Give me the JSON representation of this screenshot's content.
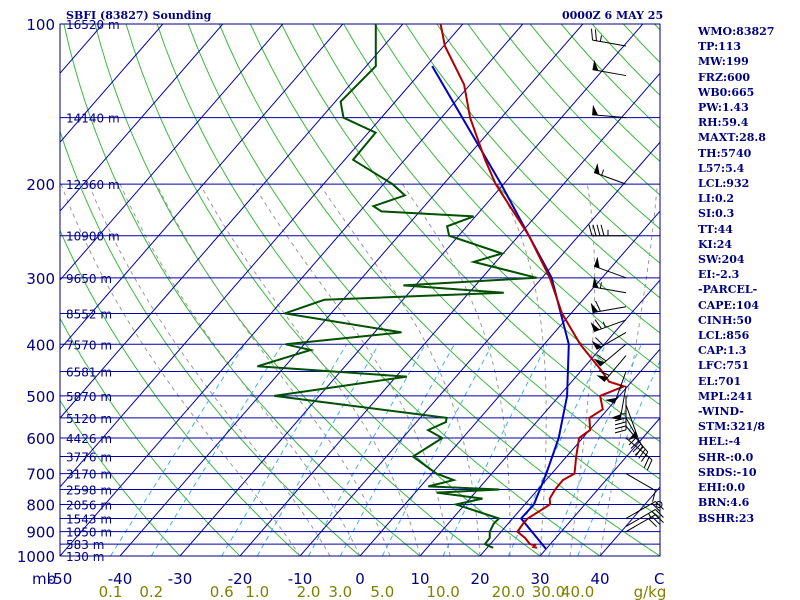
{
  "header": {
    "title": "SBFI (83827) Sounding",
    "time": "0000Z  6 MAY 25"
  },
  "indices": [
    "WMO:83827",
    "TP:113",
    "MW:199",
    "FRZ:600",
    "WB0:665",
    "PW:1.43",
    "RH:59.4",
    "MAXT:28.8",
    "TH:5740",
    "L57:5.4",
    "LCL:932",
    "LI:0.2",
    "SI:0.3",
    "TT:44",
    "KI:24",
    "SW:204",
    "EI:-2.3",
    "-PARCEL-",
    "CAPE:104",
    "CINH:50",
    "LCL:856",
    "CAP:1.3",
    "LFC:751",
    "EL:701",
    "MPL:241",
    "-WIND-",
    "STM:321/8",
    "HEL:-4",
    "SHR-:0.0",
    "SRDS:-10",
    "EHI:0.0",
    "BRN:4.6",
    "BSHR:23"
  ],
  "colors": {
    "frame": "#000080",
    "isobar": "#0000aa",
    "isotherm": "#0000aa",
    "dry_adiabat": "#3cb83c",
    "moist_adiabat": "#9a9a9a",
    "mixing_ratio": "#40b4e0",
    "temperature": "#b00000",
    "dewpoint": "#005000",
    "parcel": "#0000c0",
    "heights": "#000080",
    "mixing_ratio_labels": "#808000",
    "barbs": "#000000"
  },
  "chart_data": {
    "type": "skew-t log-p",
    "ylabel": "mb",
    "xlabel": "C",
    "mixing_ratio_unit": "g/kg",
    "pressure_ticks": [
      100,
      200,
      300,
      400,
      500,
      600,
      700,
      800,
      900,
      1000
    ],
    "pressure_tick_labels": [
      "100",
      "200",
      "300",
      "400",
      "500",
      "600",
      "700",
      "800",
      "900",
      "1000"
    ],
    "temperature_ticks": [
      -50,
      -40,
      -30,
      -20,
      -10,
      0,
      10,
      20,
      30,
      40
    ],
    "temperature_tick_labels": [
      "-50",
      "-40",
      "-30",
      "-20",
      "-10",
      "0",
      "10",
      "20",
      "30",
      "40"
    ],
    "mixing_ratio_values": [
      0.1,
      0.2,
      0.6,
      1.0,
      2.0,
      3.0,
      5.0,
      10.0,
      20.0,
      30.0,
      40.0
    ],
    "mixing_ratio_labels": [
      "0.1",
      "0.2",
      "0.6",
      "1.0",
      "2.0",
      "3.0",
      "5.0",
      "10.0",
      "20.0",
      "30.0",
      "40.0"
    ],
    "height_levels": [
      {
        "p": 100,
        "label": "16520 m"
      },
      {
        "p": 150,
        "label": "14140 m"
      },
      {
        "p": 200,
        "label": "12360 m"
      },
      {
        "p": 250,
        "label": "10900 m"
      },
      {
        "p": 300,
        "label": "9650 m"
      },
      {
        "p": 350,
        "label": "8552 m"
      },
      {
        "p": 400,
        "label": "7570 m"
      },
      {
        "p": 450,
        "label": "6581 m"
      },
      {
        "p": 500,
        "label": "5870 m"
      },
      {
        "p": 550,
        "label": "5120 m"
      },
      {
        "p": 600,
        "label": "4426 m"
      },
      {
        "p": 650,
        "label": "3776 m"
      },
      {
        "p": 700,
        "label": "3170 m"
      },
      {
        "p": 750,
        "label": "2598 m"
      },
      {
        "p": 800,
        "label": "2056 m"
      },
      {
        "p": 850,
        "label": "1543 m"
      },
      {
        "p": 900,
        "label": "1050 m"
      },
      {
        "p": 950,
        "label": "583 m"
      },
      {
        "p": 1000,
        "label": "130 m"
      }
    ],
    "temperature_series": {
      "p": [
        965,
        962,
        955,
        950,
        925,
        900,
        870,
        850,
        800,
        780,
        750,
        720,
        700,
        650,
        600,
        580,
        550,
        530,
        500,
        480,
        470,
        450,
        400,
        350,
        300,
        250,
        200,
        180,
        150,
        130,
        110,
        100
      ],
      "t": [
        28.3,
        27.6,
        27.6,
        26.6,
        24.9,
        22.7,
        22.5,
        22.5,
        24.2,
        23.3,
        22.9,
        22.8,
        23.8,
        21.6,
        19.4,
        20.1,
        18.2,
        19.2,
        16.8,
        19.4,
        16.2,
        13.6,
        6.0,
        -1.5,
        -8.7,
        -18.3,
        -31.3,
        -36.6,
        -45.2,
        -51.0,
        -59.8,
        -63.7
      ]
    },
    "dewpoint_series": {
      "p": [
        965,
        955,
        950,
        925,
        900,
        870,
        850,
        800,
        780,
        760,
        750,
        740,
        720,
        700,
        650,
        600,
        580,
        560,
        550,
        500,
        460,
        440,
        410,
        400,
        380,
        350,
        330,
        320,
        310,
        300,
        280,
        270,
        250,
        240,
        230,
        225,
        220,
        210,
        200,
        180,
        160,
        150,
        140,
        120,
        100
      ],
      "td": [
        21.0,
        19.7,
        19.1,
        19.0,
        18.1,
        17.6,
        17.7,
        8.5,
        12.1,
        3.6,
        13.6,
        1.3,
        4.6,
        0.8,
        -5.6,
        -3.4,
        -6.9,
        -5.1,
        -5.6,
        -37.5,
        -18.2,
        -44.6,
        -38.1,
        -43.1,
        -25.5,
        -47.7,
        -43.1,
        -14.2,
        -32.0,
        -10.9,
        -23.7,
        -20.2,
        -31.6,
        -33.3,
        -30.3,
        -46.4,
        -48.5,
        -44.8,
        -48.5,
        -58.6,
        -58.8,
        -66.3,
        -69.1,
        -68.4,
        -74.5
      ]
    },
    "parcel_series": {
      "p": [
        970,
        850,
        800,
        700,
        600,
        500,
        400,
        300,
        200,
        120
      ],
      "t": [
        30.0,
        21.4,
        21.5,
        19.1,
        16.0,
        11.3,
        4.1,
        -8.4,
        -30.4,
        -59.0
      ]
    },
    "wind_barbs": [
      {
        "p": 110,
        "dir": 280,
        "spd": 25
      },
      {
        "p": 125,
        "dir": 280,
        "spd": 50
      },
      {
        "p": 150,
        "dir": 275,
        "spd": 50
      },
      {
        "p": 200,
        "dir": 290,
        "spd": 55
      },
      {
        "p": 250,
        "dir": 270,
        "spd": 45
      },
      {
        "p": 300,
        "dir": 290,
        "spd": 50
      },
      {
        "p": 320,
        "dir": 280,
        "spd": 55
      },
      {
        "p": 340,
        "dir": 260,
        "spd": 60
      },
      {
        "p": 360,
        "dir": 250,
        "spd": 65
      },
      {
        "p": 380,
        "dir": 240,
        "spd": 60
      },
      {
        "p": 400,
        "dir": 230,
        "spd": 60
      },
      {
        "p": 420,
        "dir": 220,
        "spd": 60
      },
      {
        "p": 450,
        "dir": 200,
        "spd": 50
      },
      {
        "p": 480,
        "dir": 190,
        "spd": 50
      },
      {
        "p": 500,
        "dir": 180,
        "spd": 45
      },
      {
        "p": 520,
        "dir": 160,
        "spd": 50
      },
      {
        "p": 550,
        "dir": 150,
        "spd": 40
      },
      {
        "p": 570,
        "dir": 140,
        "spd": 30
      },
      {
        "p": 600,
        "dir": 130,
        "spd": 20
      },
      {
        "p": 700,
        "dir": 120,
        "spd": 10
      },
      {
        "p": 800,
        "dir": 90,
        "spd": 0
      },
      {
        "p": 850,
        "dir": 60,
        "spd": 20
      },
      {
        "p": 880,
        "dir": 60,
        "spd": 25
      },
      {
        "p": 900,
        "dir": 60,
        "spd": 30
      }
    ],
    "axis_ranges": {
      "pressure": [
        100,
        1000
      ],
      "temperature_at_1000": [
        -50,
        50
      ]
    },
    "grid": true
  }
}
